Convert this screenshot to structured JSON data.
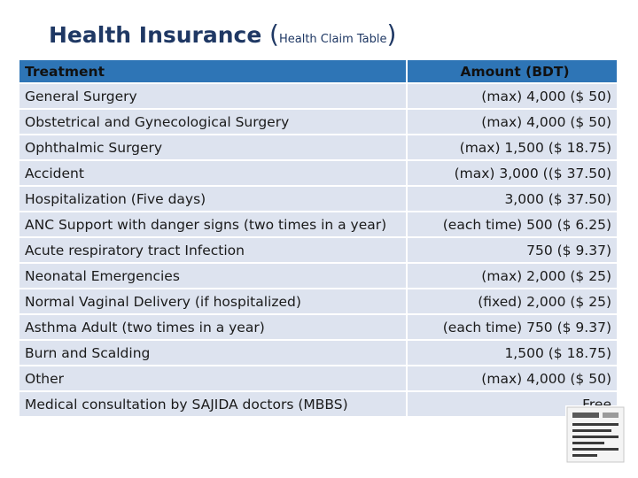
{
  "title": {
    "main": "Health Insurance",
    "open_paren": "(",
    "subtitle": "Health Claim Table",
    "close_paren": ")"
  },
  "table": {
    "headers": [
      "Treatment",
      "Amount (BDT)"
    ],
    "rows": [
      {
        "treatment": "General Surgery",
        "amount": "(max) 4,000 ($ 50)"
      },
      {
        "treatment": "Obstetrical and Gynecological Surgery",
        "amount": "(max) 4,000 ($ 50)"
      },
      {
        "treatment": "Ophthalmic Surgery",
        "amount": "(max) 1,500 ($ 18.75)"
      },
      {
        "treatment": "Accident",
        "amount": "(max) 3,000 (($ 37.50)"
      },
      {
        "treatment": "Hospitalization (Five days)",
        "amount": "3,000 ($ 37.50)"
      },
      {
        "treatment": "ANC Support with danger signs (two times in a year)",
        "amount": "(each time) 500 ($ 6.25)"
      },
      {
        "treatment": "Acute respiratory tract Infection",
        "amount": "750 ($ 9.37)"
      },
      {
        "treatment": "Neonatal Emergencies",
        "amount": "(max) 2,000 ($ 25)"
      },
      {
        "treatment": "Normal Vaginal Delivery (if hospitalized)",
        "amount": "(fixed) 2,000 ($ 25)"
      },
      {
        "treatment": "Asthma Adult (two times in a year)",
        "amount": "(each time) 750 ($ 9.37)"
      },
      {
        "treatment": "Burn and Scalding",
        "amount": "1,500 ($ 18.75)"
      },
      {
        "treatment": "Other",
        "amount": "(max) 4,000 ($ 50)"
      },
      {
        "treatment": "Medical consultation by SAJIDA doctors (MBBS)",
        "amount": "Free"
      }
    ]
  },
  "colors": {
    "title": "#1f3864",
    "header_bg": "#2e75b6",
    "row_bg": "#dde3ef"
  },
  "icons": {
    "corner_logo": "document-logo-icon"
  }
}
